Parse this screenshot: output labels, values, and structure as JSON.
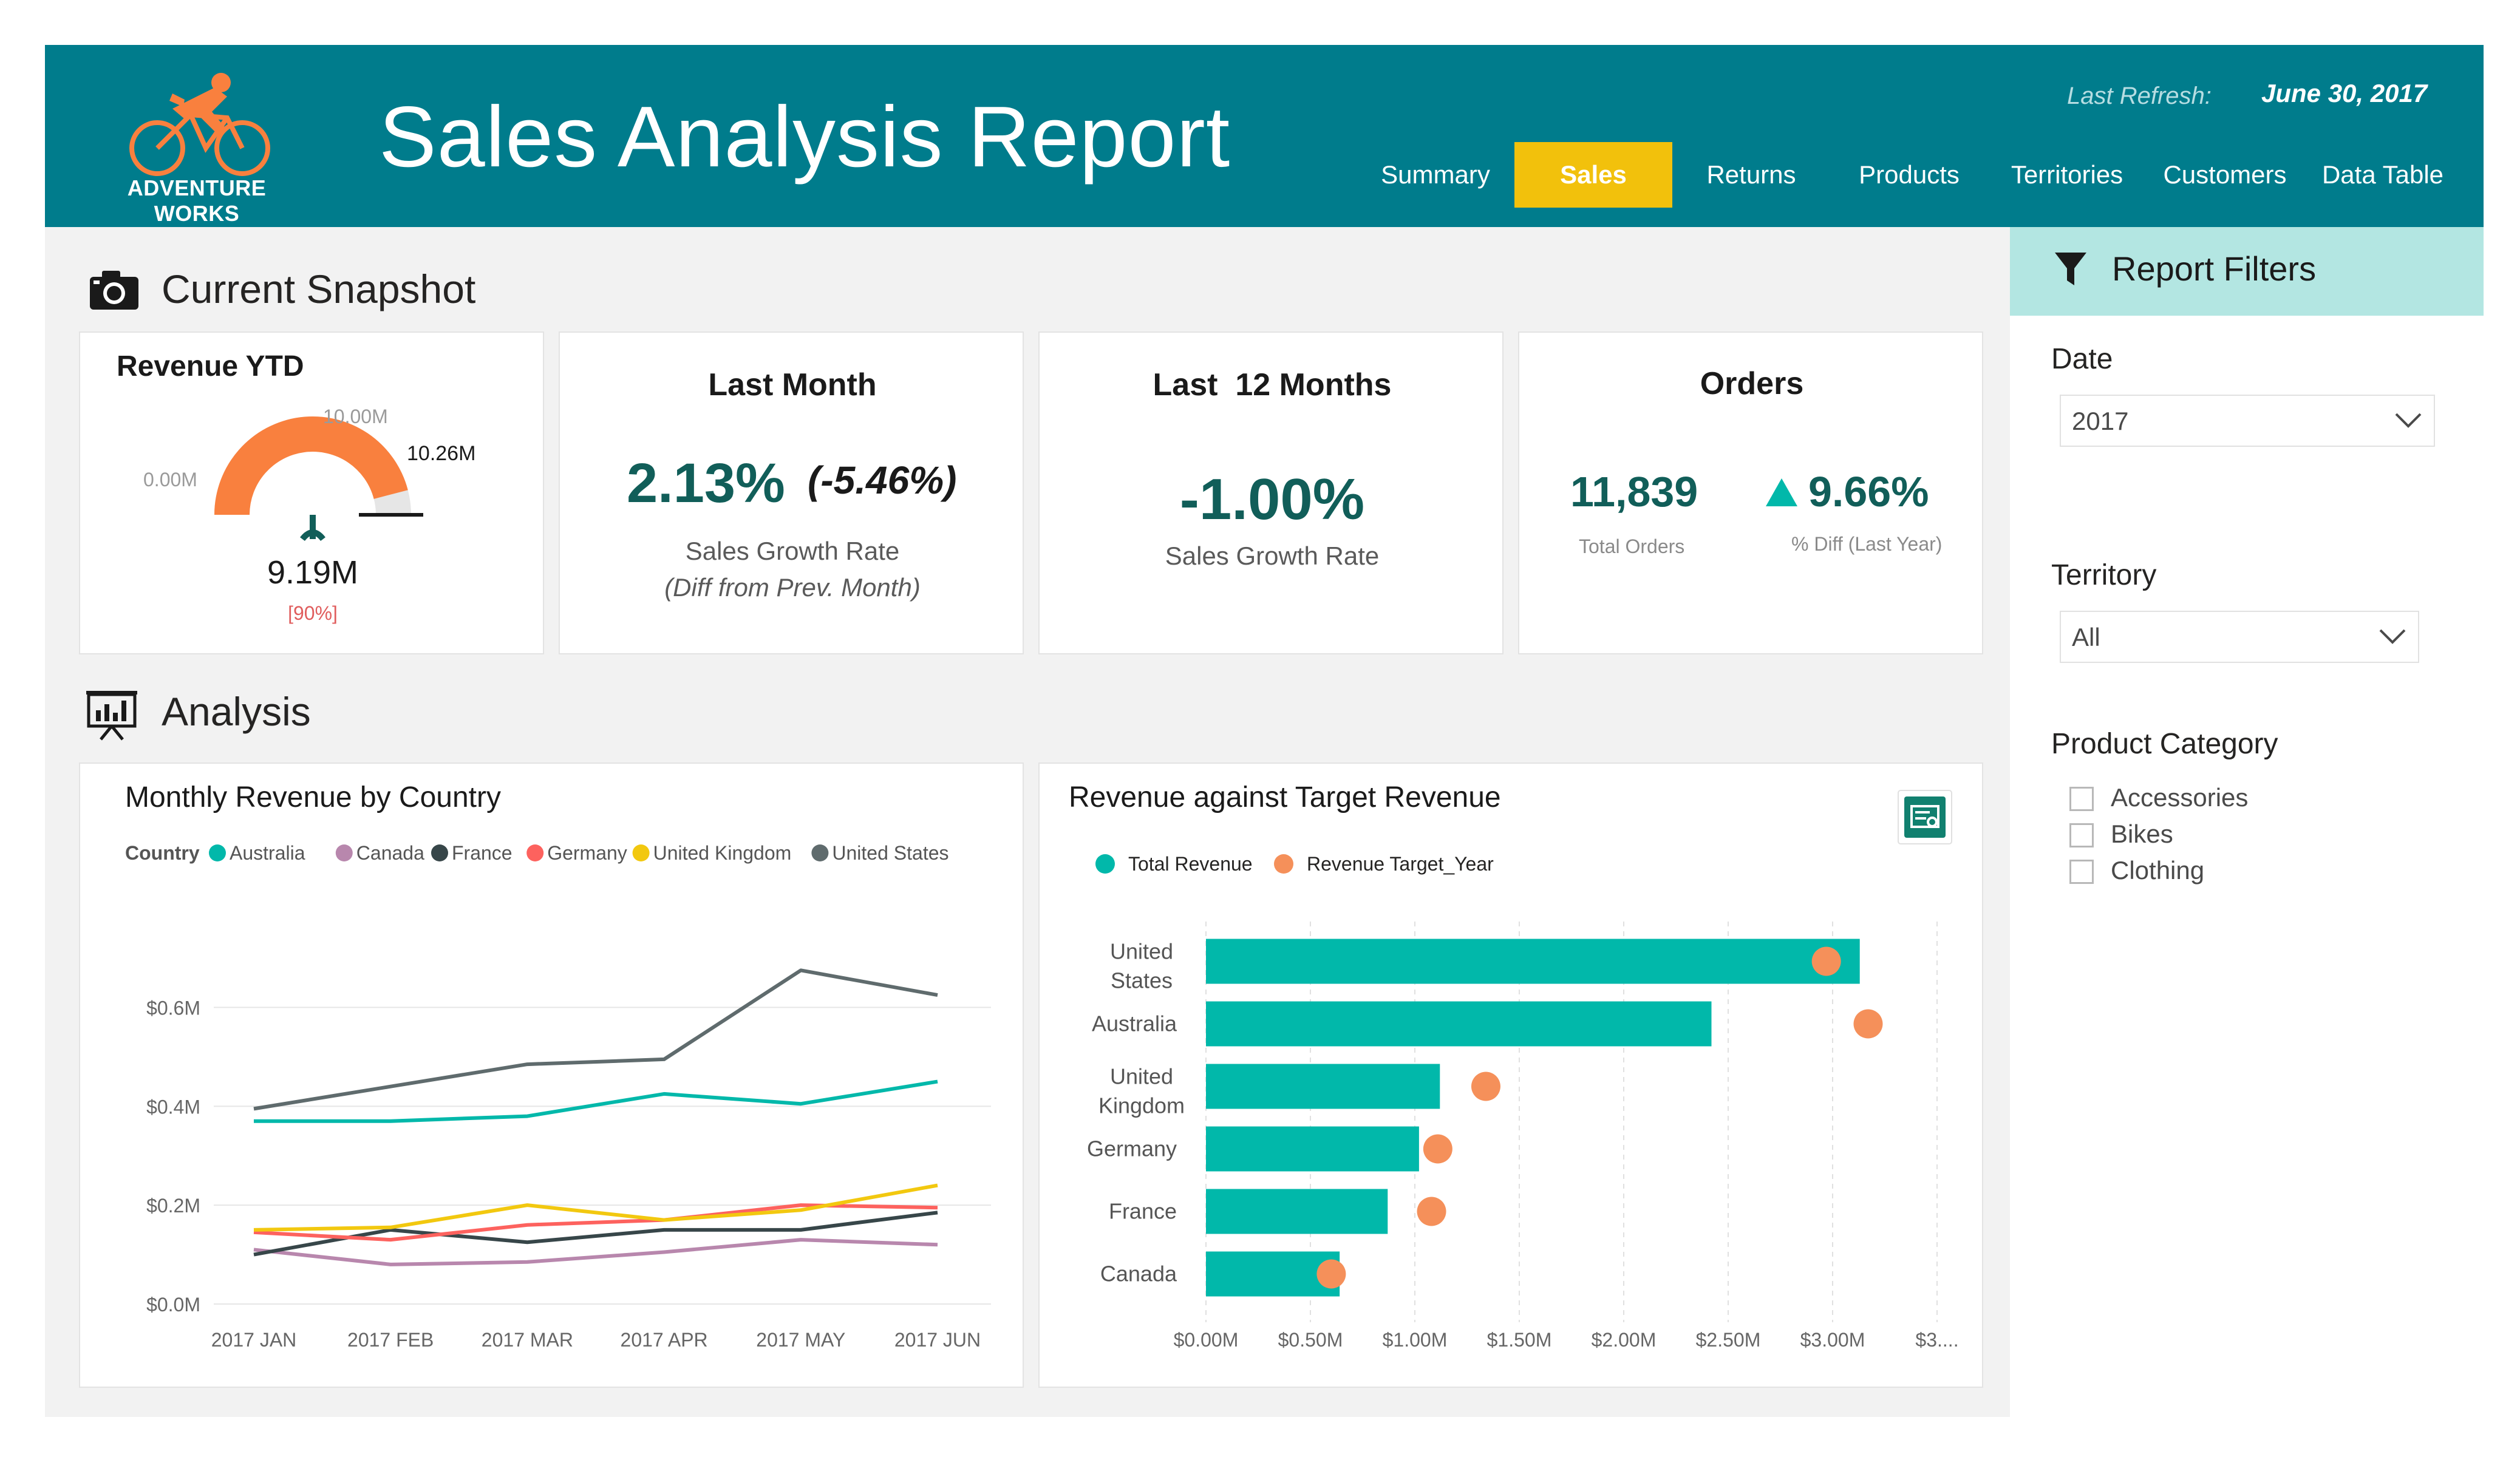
{
  "header": {
    "logo_text": "ADVENTURE WORKS",
    "title": "Sales Analysis Report",
    "last_refresh_label": "Last Refresh:",
    "last_refresh_value": "June 30, 2017",
    "tabs": [
      {
        "label": "Summary",
        "active": false
      },
      {
        "label": "Sales",
        "active": true
      },
      {
        "label": "Returns",
        "active": false
      },
      {
        "label": "Products",
        "active": false
      },
      {
        "label": "Territories",
        "active": false
      },
      {
        "label": "Customers",
        "active": false
      },
      {
        "label": "Data Table",
        "active": false
      }
    ]
  },
  "snapshot": {
    "section_title": "Current Snapshot",
    "revenue_ytd": {
      "title": "Revenue YTD",
      "min_label": "0.00M",
      "max_label": "10.00M",
      "target_label": "10.26M",
      "value": "9.19M",
      "percent": "[90%]",
      "gauge_min": 0,
      "gauge_max": 10.0,
      "gauge_value": 9.19,
      "gauge_target": 10.26
    },
    "last_month": {
      "title": "Last Month",
      "value": "2.13%",
      "diff": "(-5.46%)",
      "label": "Sales Growth Rate",
      "sublabel": "(Diff from Prev. Month)"
    },
    "last_12_months": {
      "title": "Last  12 Months",
      "value": "-1.00%",
      "label": "Sales Growth Rate"
    },
    "orders": {
      "title": "Orders",
      "total_value": "11,839",
      "total_label": "Total Orders",
      "diff_value": "9.66%",
      "diff_label": "% Diff (Last Year)"
    }
  },
  "analysis": {
    "section_title": "Analysis"
  },
  "filters": {
    "title": "Report Filters",
    "date_label": "Date",
    "date_value": "2017",
    "territory_label": "Territory",
    "territory_value": "All",
    "category_label": "Product Category",
    "categories": [
      "Accessories",
      "Bikes",
      "Clothing"
    ]
  },
  "colors": {
    "header": "#007c8c",
    "active_tab": "#f2c10c",
    "teal_bar": "#01b8aa",
    "target_dot": "#f5905a",
    "gauge_fill": "#f9803e",
    "kpi_text": "#115e59"
  },
  "chart_data": [
    {
      "type": "line",
      "title": "Monthly Revenue by Country",
      "legend_title": "Country",
      "legend_position": "top-left",
      "categories": [
        "2017 JAN",
        "2017 FEB",
        "2017 MAR",
        "2017 APR",
        "2017 MAY",
        "2017 JUN"
      ],
      "ylim": [
        0,
        0.7
      ],
      "yticks": [
        {
          "value": 0,
          "label": "$0.0M"
        },
        {
          "value": 0.2,
          "label": "$0.2M"
        },
        {
          "value": 0.4,
          "label": "$0.4M"
        },
        {
          "value": 0.6,
          "label": "$0.6M"
        }
      ],
      "grid": true,
      "series": [
        {
          "name": "Australia",
          "color": "#01b8aa",
          "values": [
            0.37,
            0.37,
            0.38,
            0.425,
            0.405,
            0.45
          ]
        },
        {
          "name": "Canada",
          "color": "#b887ad",
          "values": [
            0.11,
            0.08,
            0.085,
            0.105,
            0.13,
            0.12
          ]
        },
        {
          "name": "France",
          "color": "#374649",
          "values": [
            0.1,
            0.15,
            0.125,
            0.15,
            0.15,
            0.185
          ]
        },
        {
          "name": "Germany",
          "color": "#fd625e",
          "values": [
            0.145,
            0.13,
            0.16,
            0.17,
            0.2,
            0.195
          ]
        },
        {
          "name": "United Kingdom",
          "color": "#f2c80f",
          "values": [
            0.15,
            0.155,
            0.2,
            0.17,
            0.19,
            0.24
          ]
        },
        {
          "name": "United States",
          "color": "#5f6b6d",
          "values": [
            0.395,
            0.44,
            0.485,
            0.495,
            0.675,
            0.625
          ]
        }
      ]
    },
    {
      "type": "bar",
      "orientation": "horizontal",
      "title": "Revenue against Target Revenue",
      "legend_position": "top-left",
      "categories": [
        "United States",
        "Australia",
        "United Kingdom",
        "Germany",
        "France",
        "Canada"
      ],
      "xlim": [
        0,
        3.5
      ],
      "xticks": [
        {
          "value": 0,
          "label": "$0.00M"
        },
        {
          "value": 0.5,
          "label": "$0.50M"
        },
        {
          "value": 1.0,
          "label": "$1.00M"
        },
        {
          "value": 1.5,
          "label": "$1.50M"
        },
        {
          "value": 2.0,
          "label": "$2.00M"
        },
        {
          "value": 2.5,
          "label": "$2.50M"
        },
        {
          "value": 3.0,
          "label": "$3.00M"
        },
        {
          "value": 3.5,
          "label": "$3...."
        }
      ],
      "grid": true,
      "series": [
        {
          "name": "Total Revenue",
          "color": "#01b8aa",
          "values": [
            3.13,
            2.42,
            1.12,
            1.02,
            0.87,
            0.64
          ]
        },
        {
          "name": "Revenue Target_Year",
          "color": "#f5905a",
          "values": [
            2.97,
            3.17,
            1.34,
            1.11,
            1.08,
            0.6
          ]
        }
      ]
    }
  ]
}
